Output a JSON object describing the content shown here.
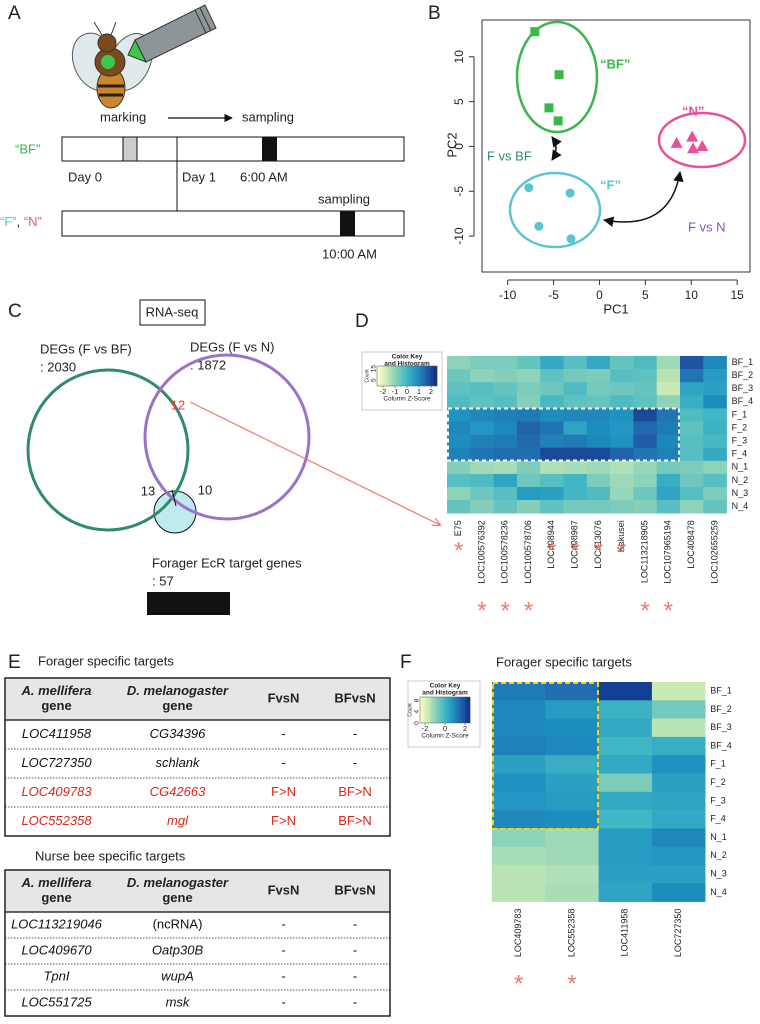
{
  "panel_a": {
    "label": "A",
    "marking": "marking",
    "sampling_1": "sampling",
    "sampling_2": "sampling",
    "group_bf": "“BF”",
    "group_f": "“F”",
    "group_sep": ", ",
    "group_n": "“N”",
    "day_0": "Day 0",
    "day_1": "Day 1",
    "time_1": "6:00 AM",
    "time_2": "10:00 AM"
  },
  "chart_data": {
    "type": "scatter",
    "panel_label": "B",
    "x_label": "PC1",
    "y_label": "PC2",
    "xlim": [
      -12.8,
      16.4
    ],
    "ylim": [
      -14,
      14.1
    ],
    "xticks": [
      -10,
      -5,
      0,
      5,
      10,
      15
    ],
    "yticks": [
      -10,
      -5,
      0,
      5,
      10
    ],
    "series": [
      {
        "name": "“BF”",
        "color": "#3cb54a",
        "marker": "square",
        "x": [
          -7.05,
          -4.4,
          -5.5,
          -4.5
        ],
        "values": [
          12.8,
          8,
          4.3,
          2.85
        ]
      },
      {
        "name": "“F”",
        "color": "#5bc4d1",
        "marker": "circle",
        "x": [
          -7.7,
          -3.2,
          -6.6,
          -3.1
        ],
        "values": [
          -4.6,
          -5.2,
          -8.9,
          -10.3
        ]
      },
      {
        "name": "“N”",
        "color": "#e8509b",
        "marker": "triangle",
        "x": [
          8.4,
          10.1,
          11.2,
          10.2
        ],
        "values": [
          0.4,
          1.1,
          0.05,
          -0.2
        ]
      }
    ],
    "annotations": [
      {
        "text": "F vs BF",
        "color": "#2e8b6b"
      },
      {
        "text": "F vs N",
        "color": "#8a4fc0"
      }
    ]
  },
  "panel_c": {
    "label": "C",
    "method": "RNA-seq",
    "set_1": "DEGs (F vs  BF)",
    "set_1_count": ": 2030",
    "set_2": "DEGs (F vs N)",
    "set_2_count": ": 1872",
    "overlap_all": "12",
    "overlap_1": "13",
    "overlap_2": "10",
    "ecr": "Forager EcR target genes",
    "ecr_count": ": 57"
  },
  "panel_d": {
    "label": "D",
    "key_title": [
      "Color Key",
      "and Histogram"
    ],
    "key_x_label": "Column Z-Score",
    "key_y_label": "Count",
    "key_ticks": [
      -2,
      -1,
      0,
      1,
      2
    ],
    "count_ticks": [
      5,
      15
    ],
    "zlim": [
      -2.5,
      2.5
    ],
    "palette": [
      "#ffffcc",
      "#c7e9b4",
      "#7fcdbb",
      "#41b6c4",
      "#1d91c0",
      "#225ea8",
      "#0c2c84"
    ],
    "star_color": "#f07a6a",
    "rows": [
      "BF_1",
      "BF_2",
      "BF_3",
      "BF_4",
      "F_1",
      "F_2",
      "F_3",
      "F_4",
      "N_1",
      "N_2",
      "N_3",
      "N_4"
    ],
    "columns": [
      "E75",
      "LOC100576392",
      "LOC100578236",
      "LOC100578706",
      "LOC408944",
      "LOC408987",
      "LOC413076",
      "Kakusei",
      "LOC113218905",
      "LOC107965194",
      "LOC408478",
      "LOC102655259"
    ],
    "stars": [
      "*",
      "*",
      "*",
      "*",
      "*",
      "*",
      "*",
      "*",
      "*",
      "*",
      null,
      null
    ],
    "values": [
      [
        -1.0,
        -0.8,
        -0.8,
        -0.5,
        0.3,
        -0.3,
        0.3,
        -0.5,
        -0.2,
        -1.2,
        1.8,
        1.0
      ],
      [
        -0.6,
        -1.0,
        -0.9,
        -1.0,
        -0.4,
        -0.7,
        -0.8,
        -0.3,
        -0.4,
        -1.5,
        1.3,
        0.6
      ],
      [
        -0.4,
        -0.3,
        -0.5,
        -0.8,
        -0.6,
        -0.2,
        -0.7,
        -0.6,
        -0.5,
        -1.7,
        0.4,
        0.5
      ],
      [
        -0.2,
        -0.4,
        -0.3,
        -0.9,
        -0.1,
        -0.4,
        -0.5,
        -0.2,
        -0.4,
        -1.0,
        0.2,
        0.9
      ],
      [
        0.8,
        1.0,
        1.1,
        1.2,
        0.9,
        1.0,
        1.0,
        0.8,
        2.0,
        1.3,
        -0.2,
        0.0
      ],
      [
        1.0,
        0.7,
        1.0,
        1.6,
        1.3,
        0.4,
        0.9,
        0.7,
        1.5,
        1.2,
        -0.4,
        0.1
      ],
      [
        0.9,
        1.1,
        1.2,
        1.5,
        1.1,
        1.2,
        1.0,
        0.8,
        1.7,
        1.0,
        -0.3,
        -0.1
      ],
      [
        1.1,
        1.3,
        1.4,
        1.4,
        2.0,
        2.0,
        2.0,
        1.6,
        1.3,
        1.1,
        -0.3,
        0.3
      ],
      [
        -0.9,
        -1.2,
        -1.3,
        -0.8,
        -1.4,
        -1.3,
        -1.2,
        -1.4,
        -1.1,
        -0.7,
        -0.8,
        -1.0
      ],
      [
        -0.3,
        -0.2,
        0.4,
        -0.6,
        -0.3,
        0.0,
        -0.8,
        -1.2,
        -1.0,
        0.2,
        -0.6,
        -0.3
      ],
      [
        -1.0,
        -0.6,
        -0.3,
        0.6,
        0.5,
        0.0,
        -0.2,
        -1.1,
        -0.6,
        0.4,
        -0.3,
        -0.8
      ],
      [
        -0.5,
        -0.9,
        -0.5,
        -0.9,
        -0.4,
        -0.7,
        -0.7,
        -0.8,
        -0.9,
        -0.3,
        -1.0,
        -0.5
      ]
    ]
  },
  "panel_e": {
    "label": "E",
    "tables": [
      {
        "title": "Forager specific targets",
        "header": [
          [
            "A. mellifera",
            "gene"
          ],
          [
            "D. melanogaster",
            "gene"
          ],
          [
            "FvsN"
          ],
          [
            "BFvsN"
          ]
        ],
        "rows": [
          [
            "LOC411958",
            "CG34396",
            "-",
            "-"
          ],
          [
            "LOC727350",
            "schlank",
            "-",
            "-"
          ],
          [
            "LOC409783",
            "CG42663",
            "F>N",
            "BF>N"
          ],
          [
            "LOC552358",
            "mgl",
            "F>N",
            "BF>N"
          ]
        ],
        "row_colors": [
          "#111111",
          "#111111",
          "#d62718",
          "#d62718"
        ]
      },
      {
        "title": "Nurse bee specific targets",
        "header": [
          [
            "A. mellifera",
            "gene"
          ],
          [
            "D. melanogaster",
            "gene"
          ],
          [
            "FvsN"
          ],
          [
            "BFvsN"
          ]
        ],
        "rows": [
          [
            "LOC113219046",
            "(ncRNA)",
            "-",
            "-"
          ],
          [
            "LOC409670",
            "Oatp30B",
            "-",
            "-"
          ],
          [
            "TpnI",
            "wupA",
            "-",
            "-"
          ],
          [
            "LOC551725",
            "msk",
            "-",
            "-"
          ]
        ],
        "row_colors": [
          "#111111",
          "#111111",
          "#111111",
          "#111111"
        ]
      }
    ]
  },
  "panel_f": {
    "label": "F",
    "title": "Forager specific targets",
    "key_title": [
      "Color Key",
      "and Histogram"
    ],
    "key_x_label": "Column Z-Score",
    "key_y_label": "Count",
    "key_ticks": [
      -2,
      0,
      2
    ],
    "count_ticks": [
      0,
      4,
      8
    ],
    "zlim": [
      -2.5,
      2.5
    ],
    "palette": [
      "#ffffcc",
      "#c7e9b4",
      "#7fcdbb",
      "#41b6c4",
      "#1d91c0",
      "#225ea8",
      "#0c2c84"
    ],
    "star_color": "#f07a6a",
    "rows": [
      "BF_1",
      "BF_2",
      "BF_3",
      "BF_4",
      "F_1",
      "F_2",
      "F_3",
      "F_4",
      "N_1",
      "N_2",
      "N_3",
      "N_4"
    ],
    "columns": [
      "LOC409783",
      "LOC552358",
      "LOC411958",
      "LOC727350"
    ],
    "stars": [
      "*",
      "*",
      null,
      null
    ],
    "values": [
      [
        1.2,
        1.4,
        2.2,
        -1.7
      ],
      [
        1.0,
        0.6,
        0.1,
        -0.7
      ],
      [
        1.0,
        0.9,
        0.3,
        -1.5
      ],
      [
        1.1,
        1.0,
        0.0,
        0.2
      ],
      [
        0.5,
        0.2,
        0.3,
        0.8
      ],
      [
        0.8,
        0.5,
        -0.8,
        0.5
      ],
      [
        0.7,
        0.6,
        0.3,
        0.4
      ],
      [
        1.0,
        0.9,
        0.0,
        0.3
      ],
      [
        -1.0,
        -1.2,
        0.6,
        1.0
      ],
      [
        -1.3,
        -1.2,
        0.6,
        0.7
      ],
      [
        -1.5,
        -1.4,
        0.5,
        0.5
      ],
      [
        -1.5,
        -1.3,
        0.4,
        0.9
      ]
    ]
  }
}
